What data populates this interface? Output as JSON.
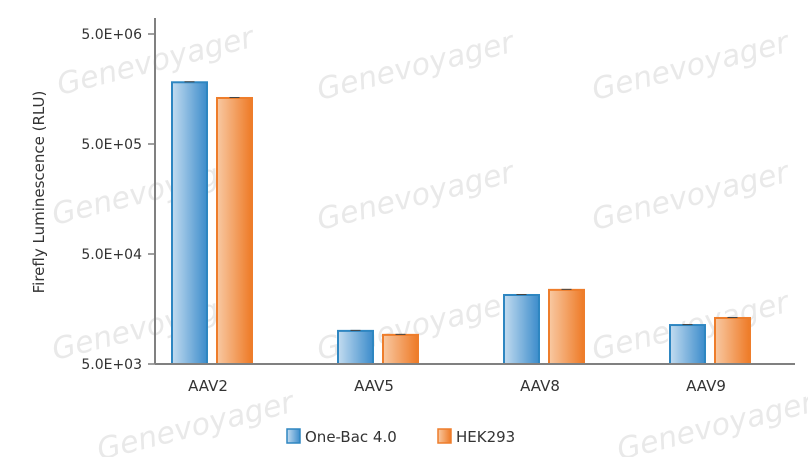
{
  "chart_data": {
    "type": "bar",
    "title": "",
    "xlabel": "",
    "ylabel": "Firefly Luminescence (RLU)",
    "yscale": "log",
    "ylim": [
      5000,
      5000000
    ],
    "yticks": [
      5000,
      50000,
      500000,
      5000000
    ],
    "ytick_labels": [
      "5.0E+03",
      "5.0E+04",
      "5.0E+05",
      "5.0E+06"
    ],
    "categories": [
      "AAV2",
      "AAV5",
      "AAV8",
      "AAV9"
    ],
    "series": [
      {
        "name": "One-Bac 4.0",
        "color": "#2e86c1",
        "values": [
          1820000,
          10000,
          21200,
          11300
        ]
      },
      {
        "name": "HEK293",
        "color": "#ee7d2b",
        "values": [
          1310000,
          9200,
          23600,
          13100
        ]
      }
    ],
    "error_bars": true,
    "grid": false,
    "legend": "bottom-center",
    "watermark": "Genevoyager"
  }
}
